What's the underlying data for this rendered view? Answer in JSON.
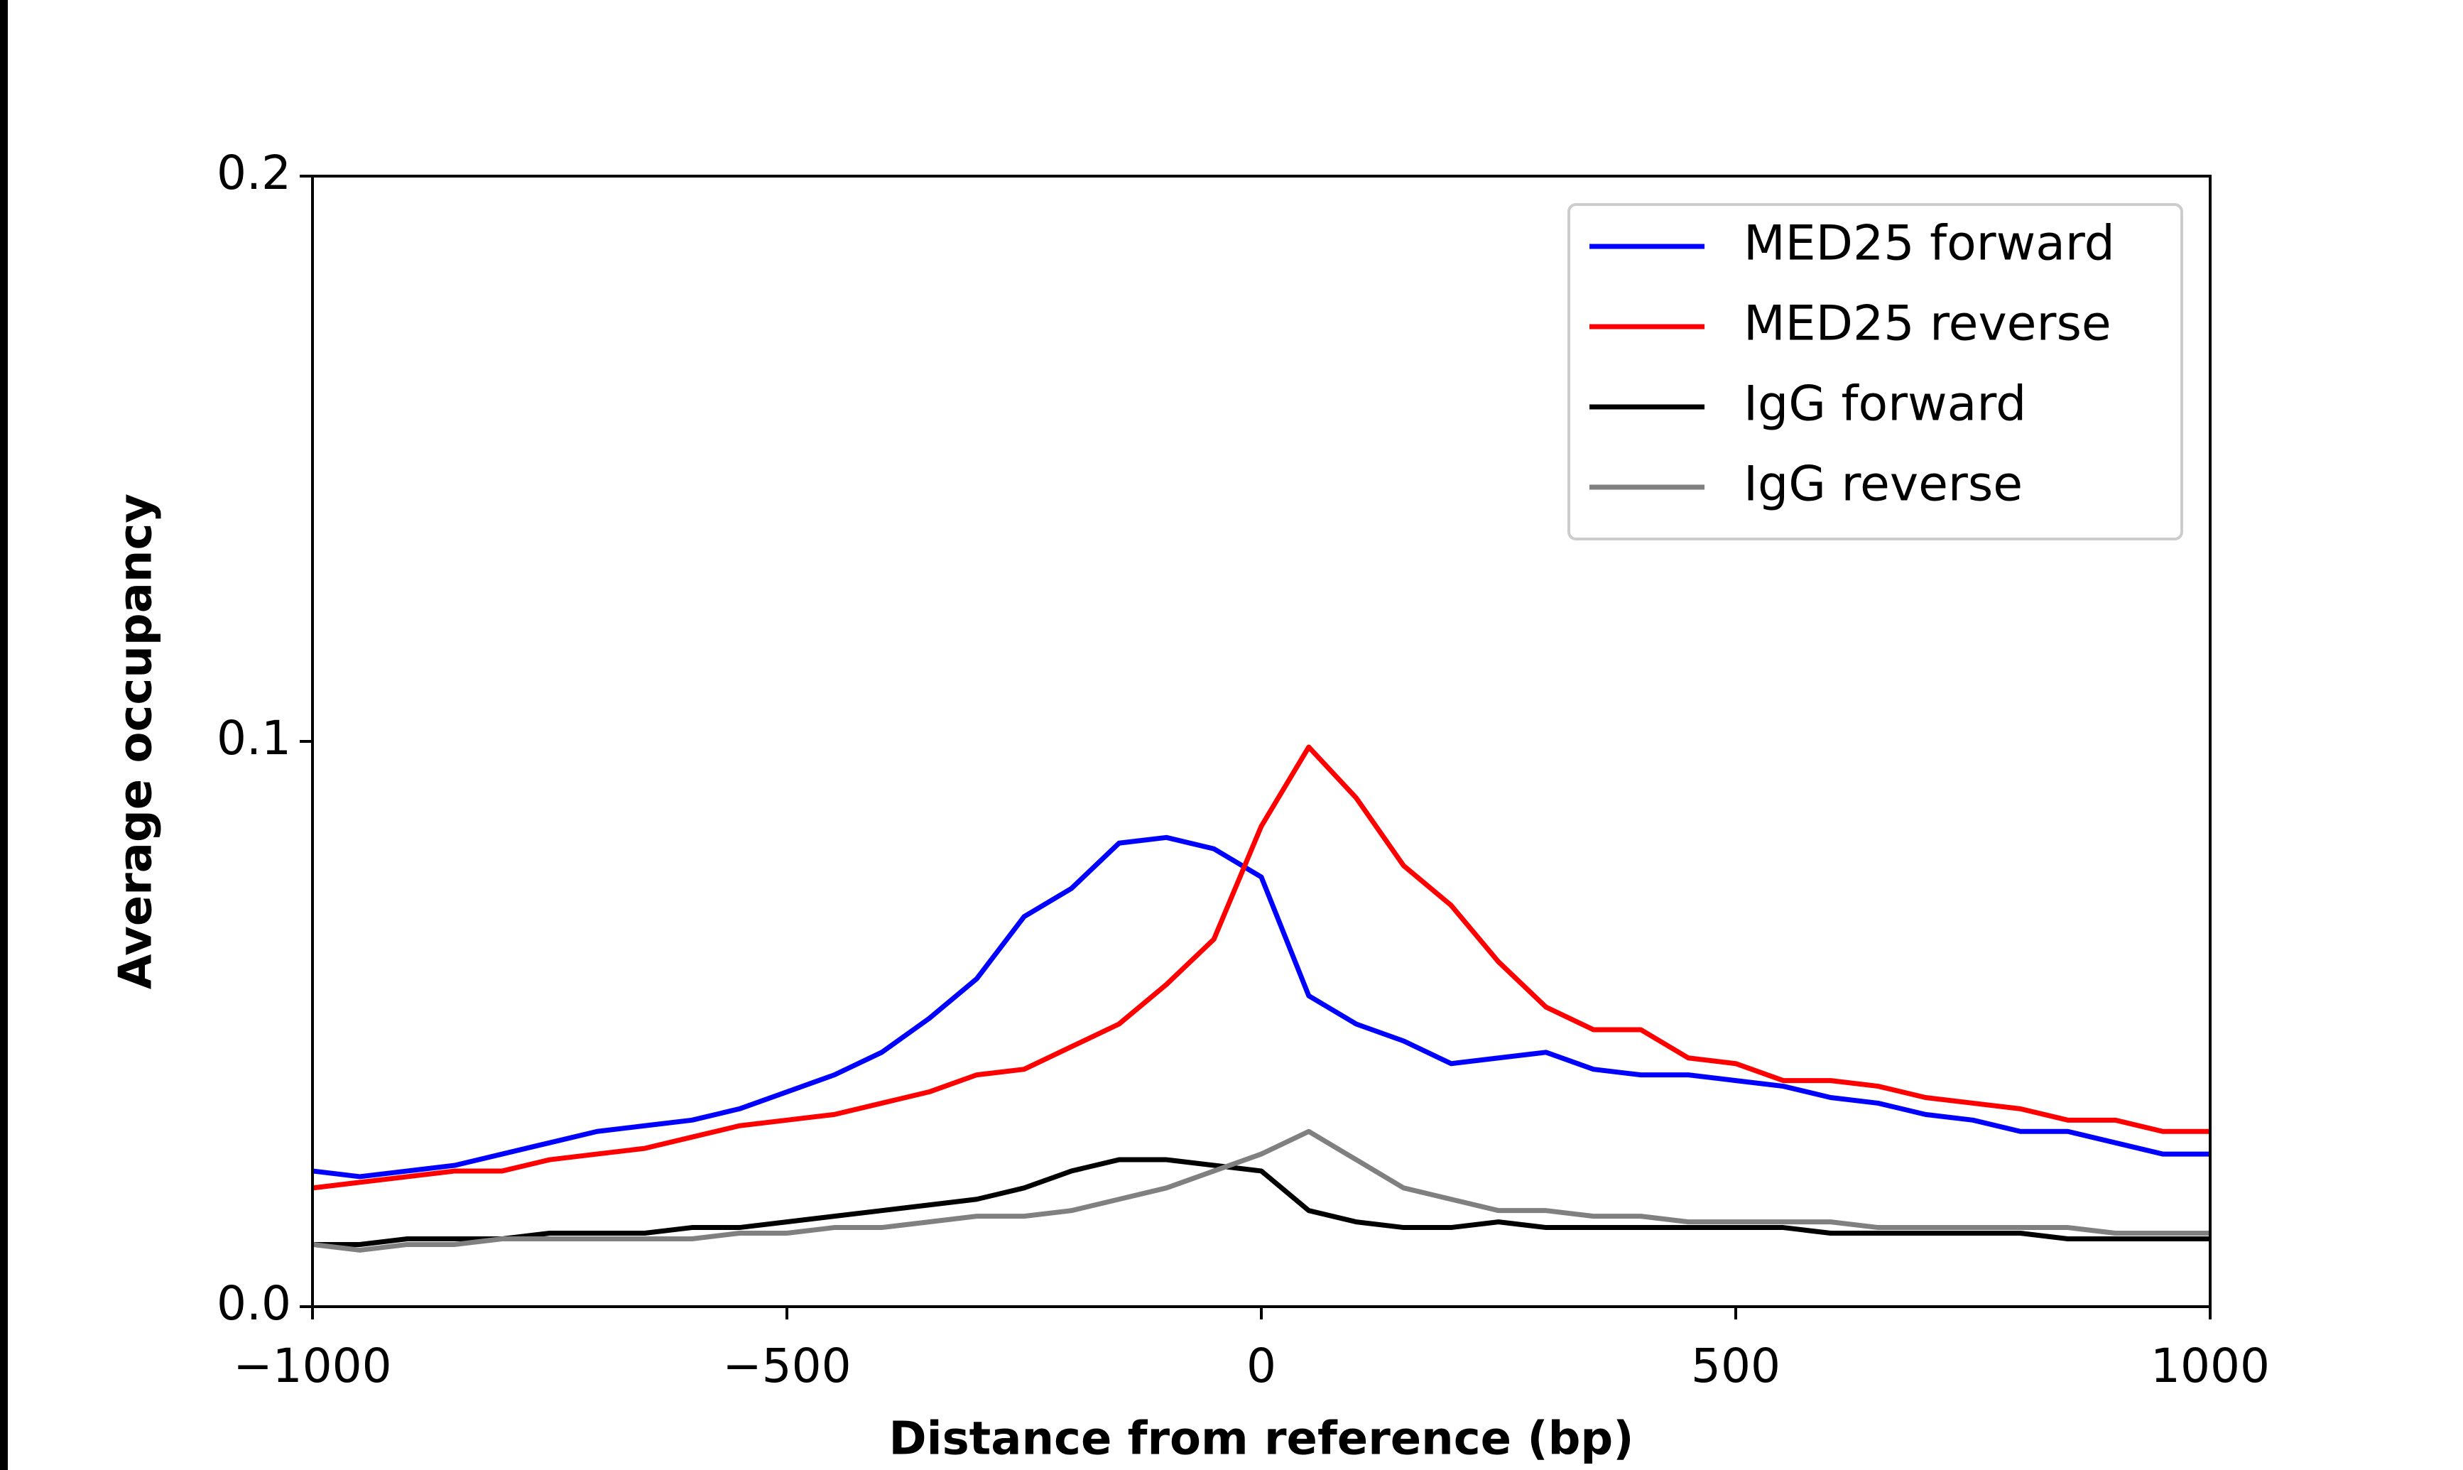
{
  "chart_data": {
    "type": "line",
    "xlabel": "Distance from reference (bp)",
    "ylabel": "Average occupancy",
    "x": [
      -1000,
      -950,
      -900,
      -850,
      -800,
      -750,
      -700,
      -650,
      -600,
      -550,
      -500,
      -450,
      -400,
      -350,
      -300,
      -250,
      -200,
      -150,
      -100,
      -50,
      0,
      50,
      100,
      150,
      200,
      250,
      300,
      350,
      400,
      450,
      500,
      550,
      600,
      650,
      700,
      750,
      800,
      850,
      900,
      950,
      1000
    ],
    "series": [
      {
        "name": "MED25 forward",
        "color": "#0000ff",
        "values": [
          0.024,
          0.023,
          0.024,
          0.025,
          0.027,
          0.029,
          0.031,
          0.032,
          0.033,
          0.035,
          0.038,
          0.041,
          0.045,
          0.051,
          0.058,
          0.069,
          0.074,
          0.082,
          0.083,
          0.081,
          0.076,
          0.055,
          0.05,
          0.047,
          0.043,
          0.044,
          0.045,
          0.042,
          0.041,
          0.041,
          0.04,
          0.039,
          0.037,
          0.036,
          0.034,
          0.033,
          0.031,
          0.031,
          0.029,
          0.027,
          0.027
        ]
      },
      {
        "name": "MED25 reverse",
        "color": "#ff0000",
        "values": [
          0.021,
          0.022,
          0.023,
          0.024,
          0.024,
          0.026,
          0.027,
          0.028,
          0.03,
          0.032,
          0.033,
          0.034,
          0.036,
          0.038,
          0.041,
          0.042,
          0.046,
          0.05,
          0.057,
          0.065,
          0.085,
          0.099,
          0.09,
          0.078,
          0.071,
          0.061,
          0.053,
          0.049,
          0.049,
          0.044,
          0.043,
          0.04,
          0.04,
          0.039,
          0.037,
          0.036,
          0.035,
          0.033,
          0.033,
          0.031,
          0.031
        ]
      },
      {
        "name": "IgG forward",
        "color": "#000000",
        "values": [
          0.011,
          0.011,
          0.012,
          0.012,
          0.012,
          0.013,
          0.013,
          0.013,
          0.014,
          0.014,
          0.015,
          0.016,
          0.017,
          0.018,
          0.019,
          0.021,
          0.024,
          0.026,
          0.026,
          0.025,
          0.024,
          0.017,
          0.015,
          0.014,
          0.014,
          0.015,
          0.014,
          0.014,
          0.014,
          0.014,
          0.014,
          0.014,
          0.013,
          0.013,
          0.013,
          0.013,
          0.013,
          0.012,
          0.012,
          0.012,
          0.012
        ]
      },
      {
        "name": "IgG reverse",
        "color": "#808080",
        "values": [
          0.011,
          0.01,
          0.011,
          0.011,
          0.012,
          0.012,
          0.012,
          0.012,
          0.012,
          0.013,
          0.013,
          0.014,
          0.014,
          0.015,
          0.016,
          0.016,
          0.017,
          0.019,
          0.021,
          0.024,
          0.027,
          0.031,
          0.026,
          0.021,
          0.019,
          0.017,
          0.017,
          0.016,
          0.016,
          0.015,
          0.015,
          0.015,
          0.015,
          0.014,
          0.014,
          0.014,
          0.014,
          0.014,
          0.013,
          0.013,
          0.013
        ]
      }
    ],
    "xlim": [
      -1000,
      1000
    ],
    "xticks": [
      {
        "value": -1000,
        "label": "−1000"
      },
      {
        "value": -500,
        "label": "−500"
      },
      0,
      500,
      1000
    ],
    "ylim": [
      0,
      0.2
    ],
    "yticks": [
      {
        "value": 0,
        "label": "0.0"
      },
      0.1,
      0.2
    ],
    "grid": false,
    "legend": "upper right"
  }
}
